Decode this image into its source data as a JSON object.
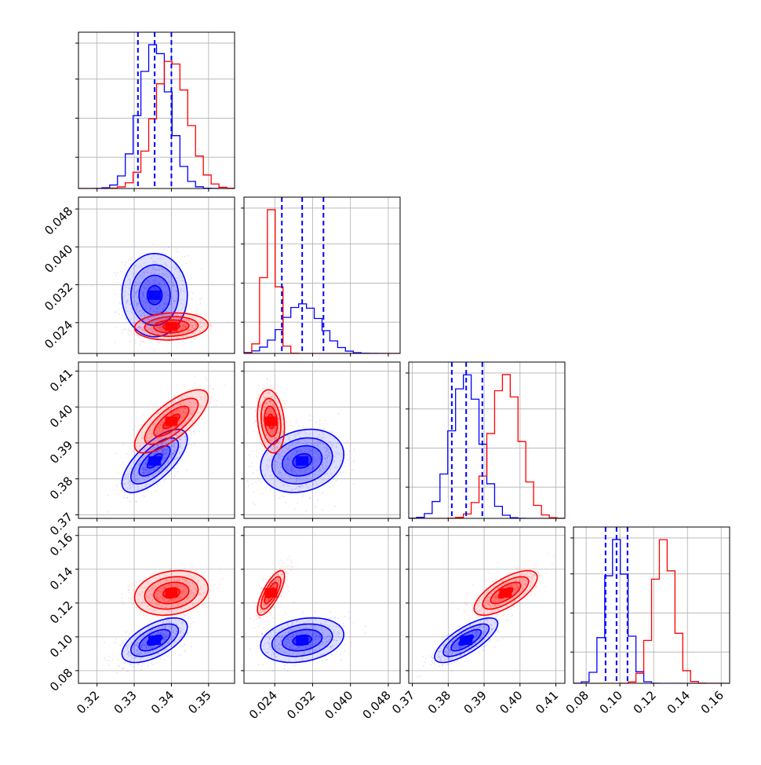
{
  "chart_data": {
    "type": "corner",
    "grid": true,
    "legend": "none",
    "colors": {
      "series_a": "#0000ff",
      "series_b": "#ff0000"
    },
    "parameters": [
      {
        "range": [
          0.315,
          0.357
        ],
        "ticks": [
          0.32,
          0.33,
          0.34,
          0.35
        ],
        "tick_labels": [
          "0.32",
          "0.33",
          "0.34",
          "0.35"
        ]
      },
      {
        "range": [
          0.0175,
          0.0505
        ],
        "ticks": [
          0.024,
          0.032,
          0.04,
          0.048
        ],
        "tick_labels": [
          "0.024",
          "0.032",
          "0.040",
          "0.048"
        ]
      },
      {
        "range": [
          0.369,
          0.4125
        ],
        "ticks": [
          0.37,
          0.38,
          0.39,
          0.4,
          0.41
        ],
        "tick_labels": [
          "0.37",
          "0.38",
          "0.39",
          "0.40",
          "0.41"
        ]
      },
      {
        "range": [
          0.0725,
          0.165
        ],
        "ticks": [
          0.08,
          0.1,
          0.12,
          0.14,
          0.16
        ],
        "tick_labels": [
          "0.08",
          "0.10",
          "0.12",
          "0.14",
          "0.16"
        ]
      }
    ],
    "series": [
      {
        "color": "#0000ff",
        "mean": [
          0.3355,
          0.0298,
          0.385,
          0.098
        ],
        "sd": [
          0.004,
          0.004,
          0.004,
          0.006
        ],
        "corr": [
          [
            1,
            0,
            0.7,
            0.6
          ],
          [
            0,
            1,
            0.2,
            0.25
          ],
          [
            0.7,
            0.2,
            1,
            0.75
          ],
          [
            0.6,
            0.25,
            0.75,
            1
          ]
        ],
        "quantiles": [
          [
            0.331,
            0.3355,
            0.34
          ],
          [
            0.0255,
            0.0298,
            0.0343
          ],
          [
            0.381,
            0.385,
            0.3895
          ],
          [
            0.0915,
            0.098,
            0.1045
          ]
        ]
      },
      {
        "color": "#ff0000",
        "mean": [
          0.34,
          0.0232,
          0.396,
          0.126
        ],
        "sd": [
          0.0045,
          0.0013,
          0.004,
          0.006
        ],
        "corr": [
          [
            1,
            0.1,
            0.75,
            0.2
          ],
          [
            0.1,
            1,
            -0.2,
            0.75
          ],
          [
            0.75,
            -0.2,
            1,
            0.7
          ],
          [
            0.2,
            0.75,
            0.7,
            1
          ]
        ],
        "quantiles": null
      }
    ]
  }
}
